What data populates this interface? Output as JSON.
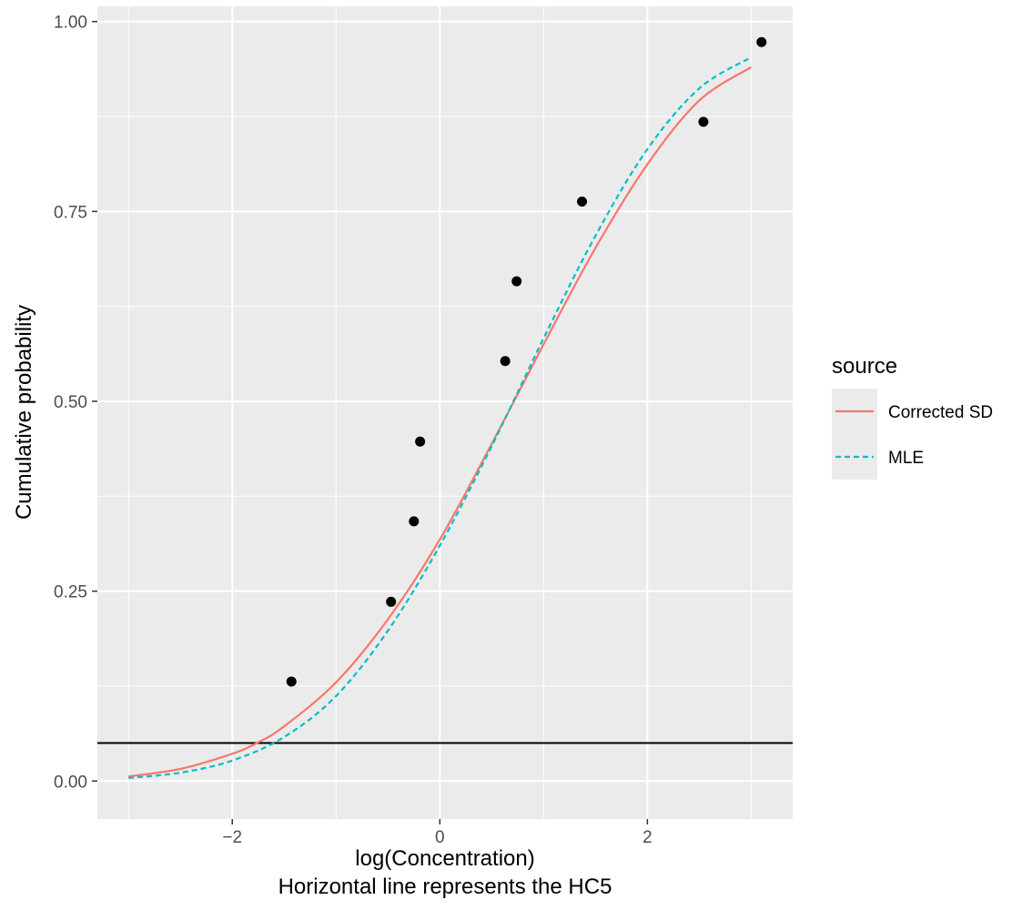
{
  "chart_data": {
    "type": "line",
    "title": "",
    "xlabel": "log(Concentration)",
    "caption": "Horizontal line represents the HC5",
    "ylabel": "Cumulative probability",
    "xlim": [
      -3.3,
      3.4
    ],
    "ylim": [
      -0.05,
      1.02
    ],
    "x_ticks": [
      -2,
      0,
      2
    ],
    "x_tick_labels": [
      "−2",
      "0",
      "2"
    ],
    "y_ticks": [
      0,
      0.25,
      0.5,
      0.75,
      1.0
    ],
    "y_tick_labels": [
      "0.00",
      "0.25",
      "0.50",
      "0.75",
      "1.00"
    ],
    "grid": true,
    "legend": {
      "title": "source",
      "position": "right"
    },
    "hline": {
      "y": 0.05,
      "color": "#000000"
    },
    "points": {
      "color": "#000000",
      "x": [
        -1.43,
        -0.47,
        -0.25,
        -0.19,
        0.63,
        0.74,
        1.37,
        2.54,
        3.1
      ],
      "y": [
        0.131,
        0.236,
        0.342,
        0.447,
        0.553,
        0.658,
        0.763,
        0.868,
        0.973
      ]
    },
    "series": [
      {
        "name": "Corrected SD",
        "color": "#F8766D",
        "dash": "solid",
        "x": [
          -3.0,
          -2.5,
          -2.0,
          -1.75,
          -1.5,
          -1.0,
          -0.5,
          0.0,
          0.5,
          1.0,
          1.5,
          2.0,
          2.5,
          3.0
        ],
        "y": [
          0.006,
          0.016,
          0.036,
          0.051,
          0.072,
          0.13,
          0.213,
          0.318,
          0.444,
          0.575,
          0.702,
          0.812,
          0.896,
          0.94
        ]
      },
      {
        "name": "MLE",
        "color": "#00BFC4",
        "dash": "dashed",
        "x": [
          -3.0,
          -2.5,
          -2.0,
          -1.5,
          -1.0,
          -0.5,
          0.0,
          0.5,
          1.0,
          1.5,
          2.0,
          2.5,
          3.0
        ],
        "y": [
          0.004,
          0.011,
          0.027,
          0.058,
          0.112,
          0.198,
          0.31,
          0.441,
          0.583,
          0.718,
          0.832,
          0.912,
          0.953
        ]
      }
    ]
  }
}
